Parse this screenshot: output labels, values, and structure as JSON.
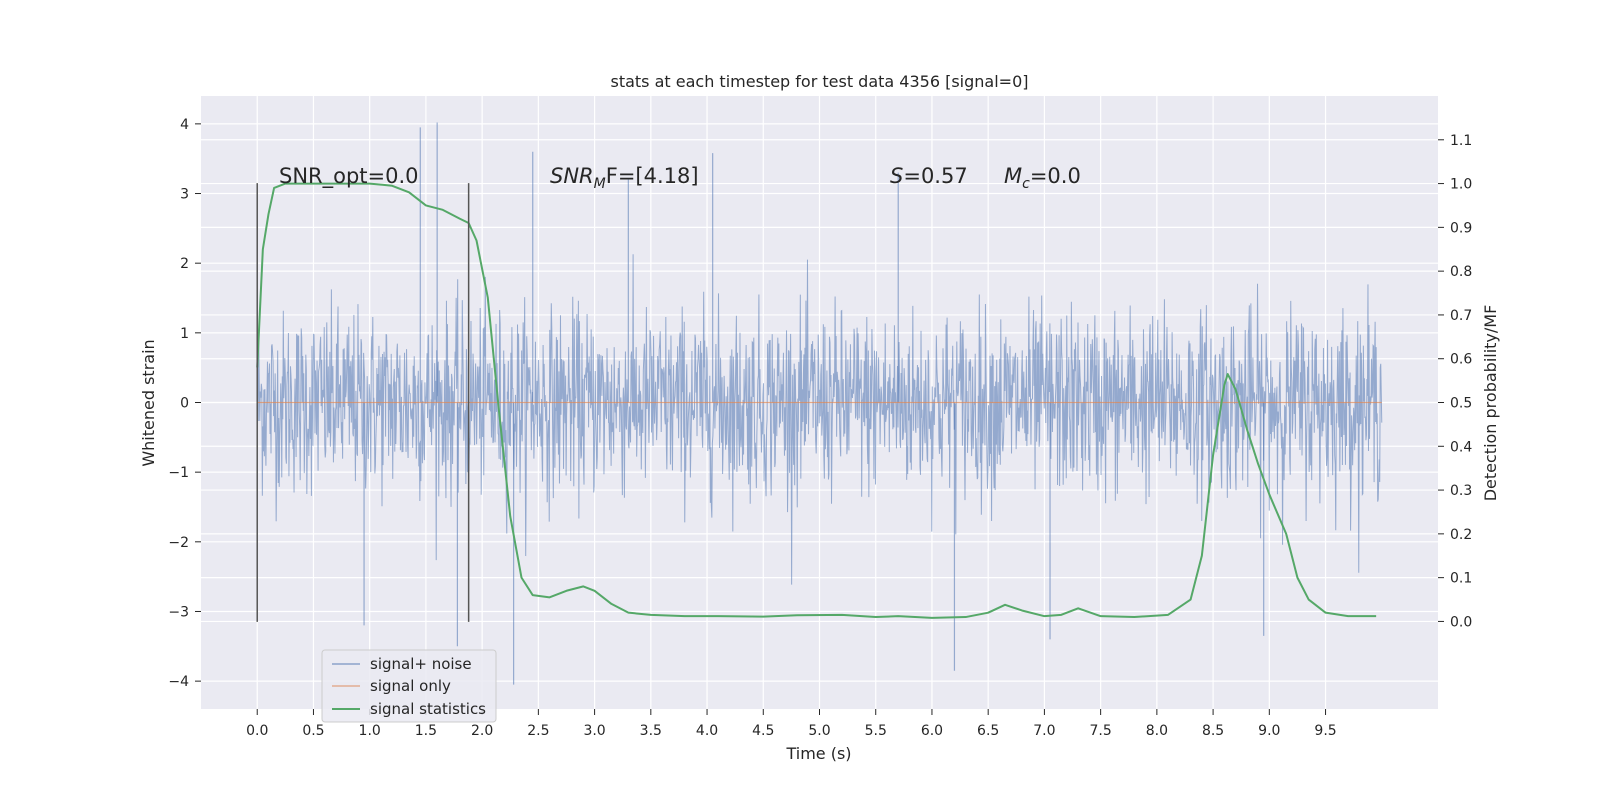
{
  "chart_data": {
    "type": "line",
    "title": "stats at each timestep for test data 4356 [signal=0]",
    "xlabel": "Time (s)",
    "ylabel": "Whitened strain",
    "ylabel_right": "Detection probability/MF",
    "xlim": [
      -0.5,
      10.5
    ],
    "ylim": [
      -4.4,
      4.4
    ],
    "ylim_right": [
      -0.2,
      1.2
    ],
    "x_ticks": [
      "0.0",
      "0.5",
      "1.0",
      "1.5",
      "2.0",
      "2.5",
      "3.0",
      "3.5",
      "4.0",
      "4.5",
      "5.0",
      "5.5",
      "6.0",
      "6.5",
      "7.0",
      "7.5",
      "8.0",
      "8.5",
      "9.0",
      "9.5"
    ],
    "y_ticks": [
      "4",
      "3",
      "2",
      "1",
      "0",
      "−1",
      "−2",
      "−3",
      "−4"
    ],
    "y_right_ticks": [
      "1.1",
      "1.0",
      "0.9",
      "0.8",
      "0.7",
      "0.6",
      "0.5",
      "0.4",
      "0.3",
      "0.2",
      "0.1",
      "0.0"
    ],
    "grid": true,
    "legend_position": "lower-left",
    "annotations": {
      "snr_opt": "SNR_opt=0.0",
      "snr_mf_sym": "SNR",
      "snr_mf_sub": "M",
      "snr_mf_rest": "F=[4.18]",
      "s_sym": "S",
      "s_rest": "=0.57",
      "mc_sym": "M",
      "mc_sub": "c",
      "mc_rest": "=0.0"
    },
    "vlines": [
      0.0,
      1.88
    ],
    "vline_ylim": [
      -3.15,
      3.15
    ],
    "series": [
      {
        "name": "signal+ noise",
        "color": "#4c72b0",
        "kind": "noise",
        "x_range": [
          0.0,
          10.0
        ],
        "std": 0.65,
        "spikes": [
          [
            1.45,
            3.95
          ],
          [
            1.6,
            4.02
          ],
          [
            1.78,
            -3.5
          ],
          [
            2.28,
            -4.05
          ],
          [
            2.45,
            3.6
          ],
          [
            4.05,
            3.58
          ],
          [
            6.2,
            -3.85
          ],
          [
            7.05,
            -3.4
          ],
          [
            8.95,
            -3.35
          ],
          [
            0.95,
            -3.2
          ],
          [
            3.3,
            3.2
          ],
          [
            5.7,
            3.3
          ]
        ]
      },
      {
        "name": "signal only",
        "color": "#dd8452",
        "kind": "flat",
        "x_range": [
          0.0,
          10.0
        ],
        "value": 0.0
      },
      {
        "name": "signal statistics",
        "color": "#55a868",
        "kind": "line",
        "axis": "right",
        "x": [
          0.0,
          0.05,
          0.1,
          0.15,
          0.25,
          0.4,
          0.6,
          0.8,
          1.0,
          1.2,
          1.35,
          1.5,
          1.65,
          1.8,
          1.88,
          1.95,
          2.05,
          2.15,
          2.25,
          2.35,
          2.45,
          2.6,
          2.75,
          2.9,
          3.0,
          3.15,
          3.3,
          3.5,
          3.8,
          4.1,
          4.5,
          4.8,
          5.2,
          5.5,
          5.7,
          6.0,
          6.3,
          6.5,
          6.65,
          6.8,
          7.0,
          7.15,
          7.3,
          7.5,
          7.8,
          8.1,
          8.3,
          8.4,
          8.5,
          8.6,
          8.63,
          8.7,
          8.8,
          8.9,
          9.0,
          9.15,
          9.25,
          9.35,
          9.5,
          9.7,
          9.95
        ],
        "values": [
          0.58,
          0.85,
          0.93,
          0.99,
          1.0,
          1.0,
          1.0,
          1.0,
          1.0,
          0.995,
          0.98,
          0.95,
          0.94,
          0.92,
          0.91,
          0.87,
          0.74,
          0.48,
          0.24,
          0.1,
          0.06,
          0.055,
          0.07,
          0.08,
          0.07,
          0.04,
          0.02,
          0.015,
          0.012,
          0.012,
          0.011,
          0.014,
          0.015,
          0.01,
          0.012,
          0.008,
          0.01,
          0.02,
          0.038,
          0.025,
          0.012,
          0.015,
          0.03,
          0.012,
          0.01,
          0.015,
          0.05,
          0.15,
          0.38,
          0.54,
          0.565,
          0.53,
          0.44,
          0.36,
          0.29,
          0.2,
          0.1,
          0.05,
          0.02,
          0.012,
          0.012
        ]
      }
    ]
  }
}
